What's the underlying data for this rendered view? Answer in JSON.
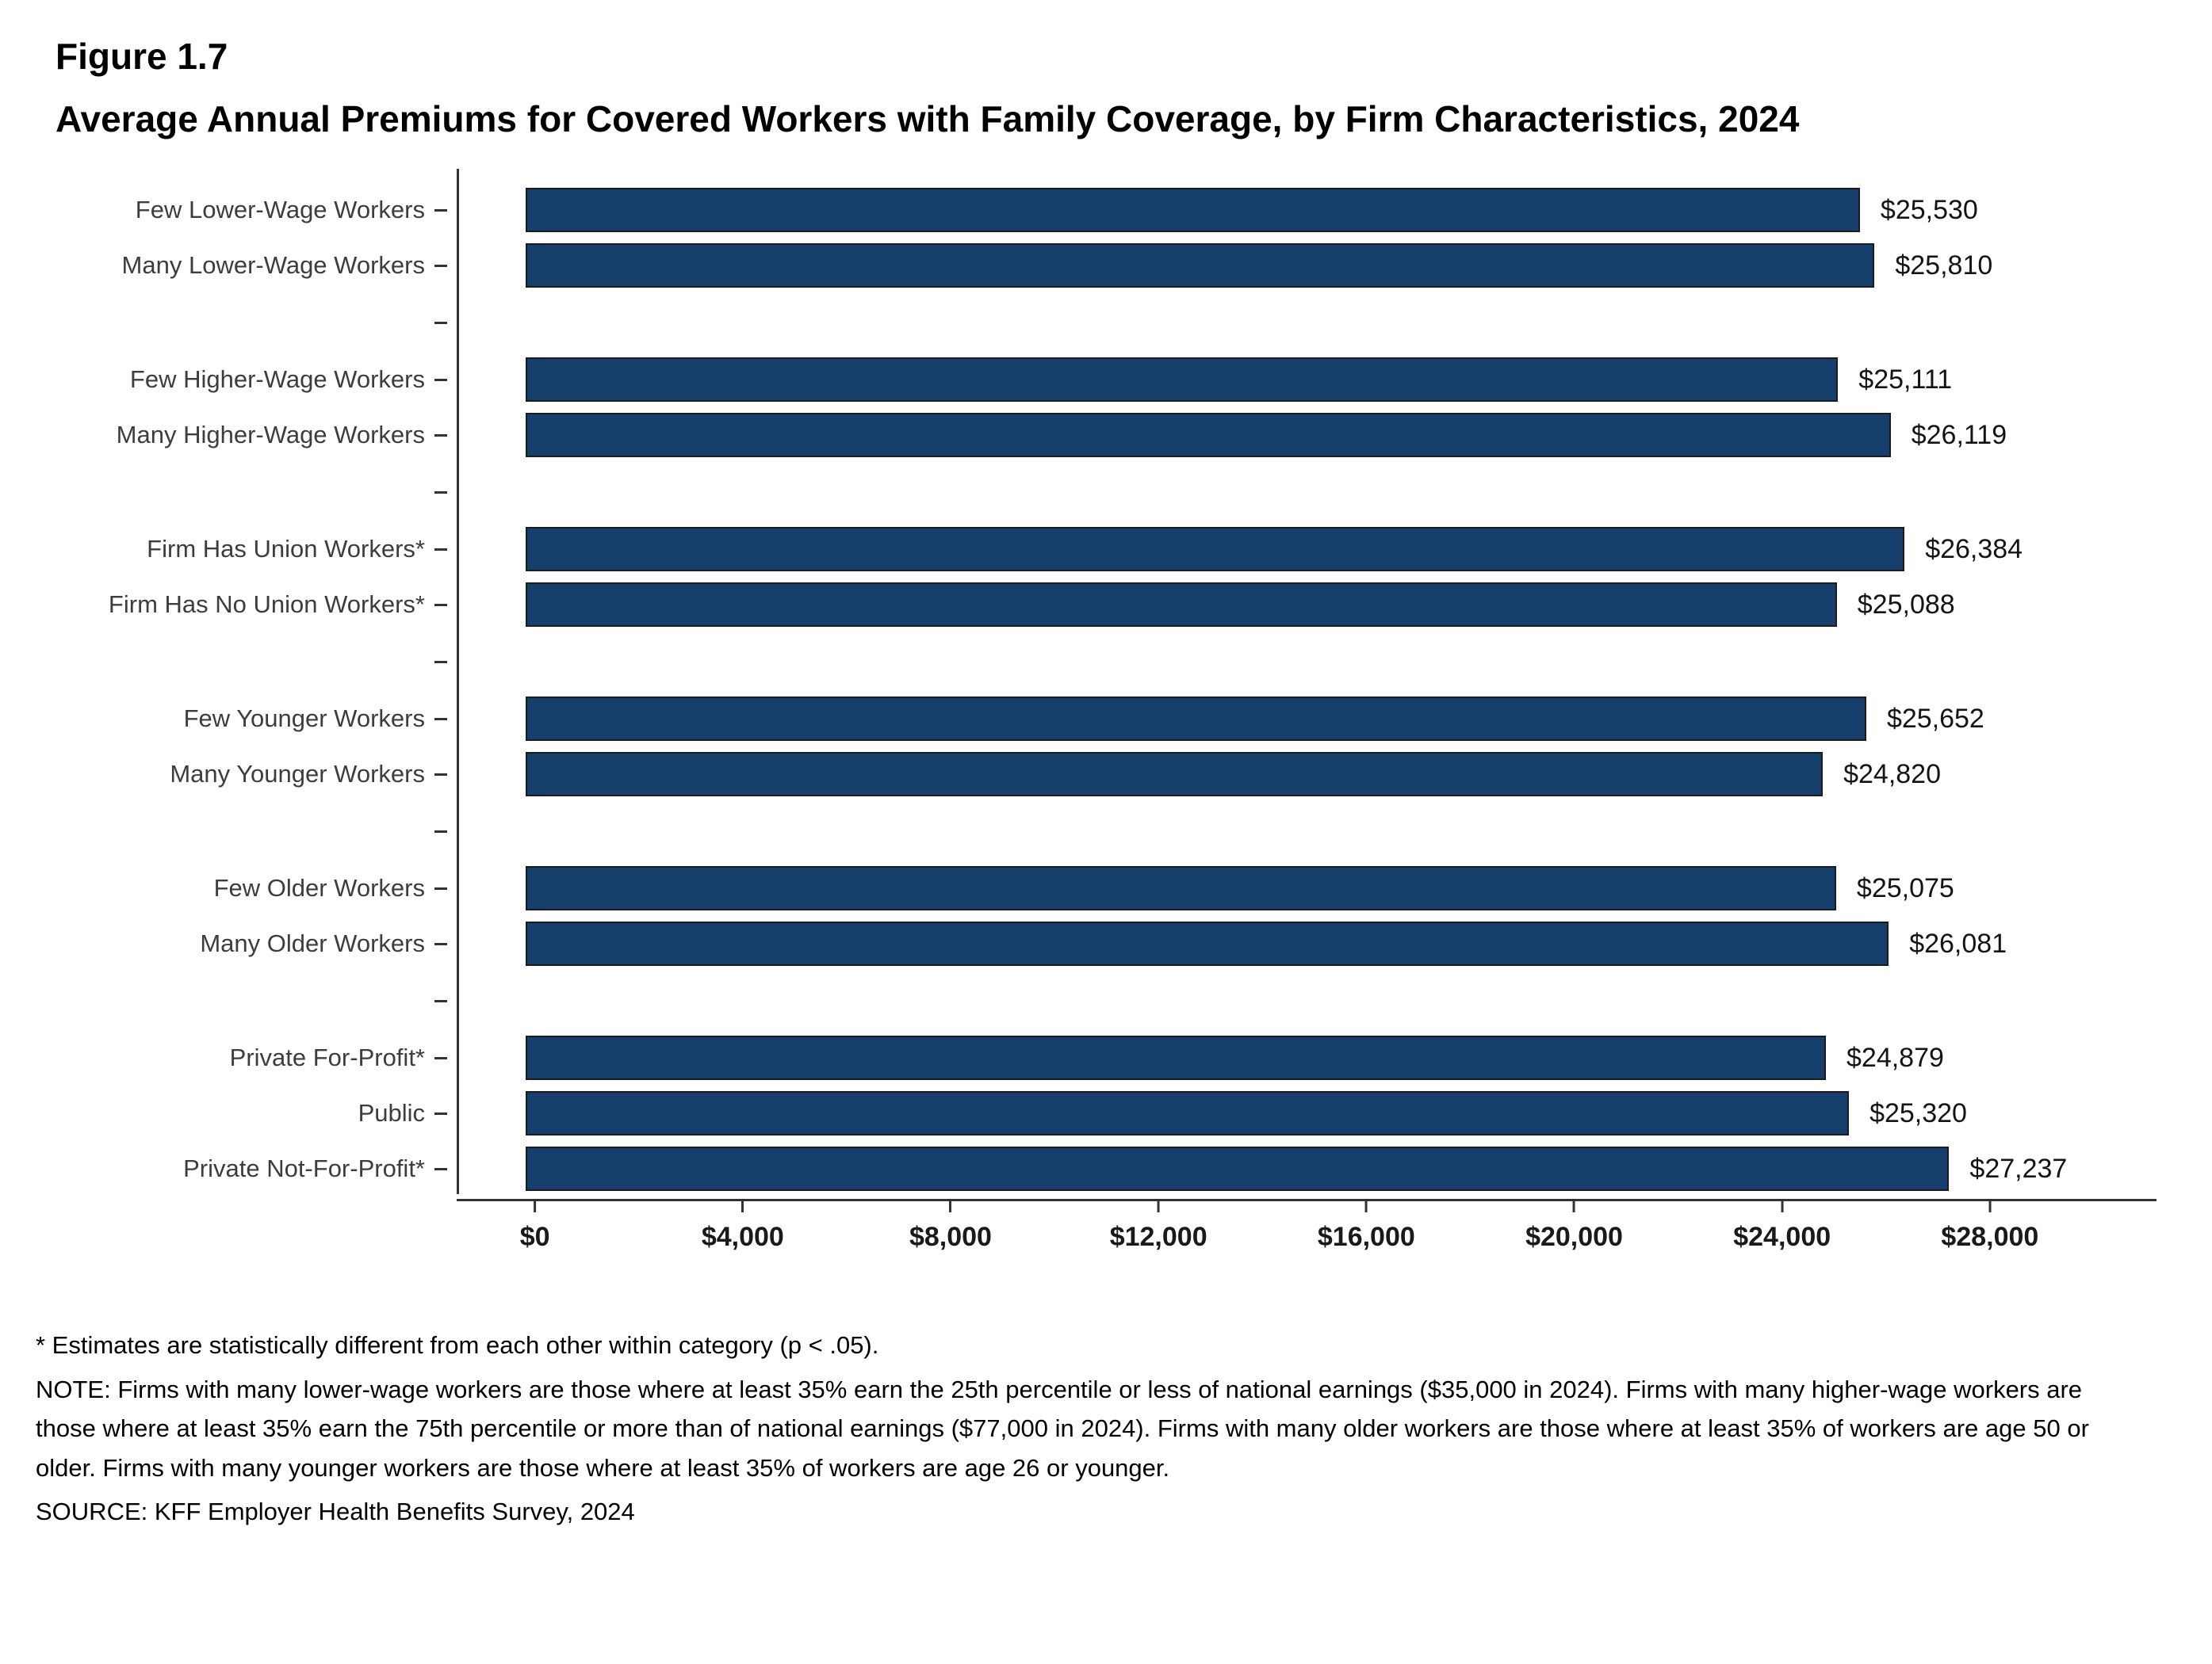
{
  "figure": {
    "label": "Figure 1.7",
    "title": "Average Annual Premiums for Covered Workers with Family Coverage, by Firm Characteristics, 2024"
  },
  "chart_data": {
    "type": "bar",
    "orientation": "horizontal",
    "title": "Average Annual Premiums for Covered Workers with Family Coverage, by Firm Characteristics, 2024",
    "xlabel": "",
    "ylabel": "",
    "xlim": [
      0,
      28000
    ],
    "grid": false,
    "bar_color": "#173F6E",
    "x_ticks": [
      {
        "value": 0,
        "label": "$0"
      },
      {
        "value": 4000,
        "label": "$4,000"
      },
      {
        "value": 8000,
        "label": "$8,000"
      },
      {
        "value": 12000,
        "label": "$12,000"
      },
      {
        "value": 16000,
        "label": "$16,000"
      },
      {
        "value": 20000,
        "label": "$20,000"
      },
      {
        "value": 24000,
        "label": "$24,000"
      },
      {
        "value": 28000,
        "label": "$28,000"
      }
    ],
    "groups": [
      [
        {
          "label": "Few Lower-Wage Workers",
          "value": 25530,
          "display": "$25,530"
        },
        {
          "label": "Many Lower-Wage Workers",
          "value": 25810,
          "display": "$25,810"
        }
      ],
      [
        {
          "label": "Few Higher-Wage Workers",
          "value": 25111,
          "display": "$25,111"
        },
        {
          "label": "Many Higher-Wage Workers",
          "value": 26119,
          "display": "$26,119"
        }
      ],
      [
        {
          "label": "Firm Has Union Workers*",
          "value": 26384,
          "display": "$26,384"
        },
        {
          "label": "Firm Has No Union Workers*",
          "value": 25088,
          "display": "$25,088"
        }
      ],
      [
        {
          "label": "Few Younger Workers",
          "value": 25652,
          "display": "$25,652"
        },
        {
          "label": "Many Younger Workers",
          "value": 24820,
          "display": "$24,820"
        }
      ],
      [
        {
          "label": "Few Older Workers",
          "value": 25075,
          "display": "$25,075"
        },
        {
          "label": "Many Older Workers",
          "value": 26081,
          "display": "$26,081"
        }
      ],
      [
        {
          "label": "Private For-Profit*",
          "value": 24879,
          "display": "$24,879"
        },
        {
          "label": "Public",
          "value": 25320,
          "display": "$25,320"
        },
        {
          "label": "Private Not-For-Profit*",
          "value": 27237,
          "display": "$27,237"
        }
      ]
    ]
  },
  "notes": {
    "asterisk": "* Estimates are statistically different from each other within category (p < .05).",
    "note": "NOTE: Firms with many lower-wage workers are those where at least 35% earn the 25th percentile or less of national earnings ($35,000 in 2024). Firms with many higher-wage workers are those where at least 35% earn the 75th percentile or more than of national earnings ($77,000 in 2024). Firms with many older workers are those where at least 35% of workers are age 50 or older. Firms with many younger workers are those where at least 35% of workers are age 26 or younger.",
    "source": "SOURCE: KFF Employer Health Benefits Survey, 2024"
  }
}
